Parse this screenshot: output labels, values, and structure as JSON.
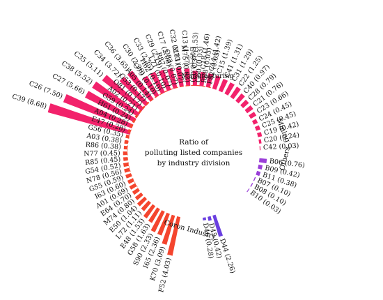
{
  "chart_data": {
    "type": "bar",
    "layout": "radial",
    "title_lines": [
      "Ratio of",
      "polluting listed companies",
      "by industry division"
    ],
    "colors": {
      "Manufacturing": "#f2226b",
      "Mining": "#9a3fd8",
      "Others": "#6a3fe0",
      "Coron Industry": "#f4452e"
    },
    "series": [
      {
        "name": "Manufacturing",
        "categories": [
          "C39",
          "C26",
          "C27",
          "C38",
          "C35",
          "C34",
          "C36",
          "C30",
          "C33",
          "C29",
          "C17",
          "C32",
          "C13",
          "C37",
          "C18",
          "C14",
          "C15",
          "C41",
          "C31",
          "C22",
          "C40",
          "C28",
          "C21",
          "C23",
          "C24",
          "C25",
          "C19",
          "C20",
          "C42"
        ],
        "values": [
          8.68,
          7.5,
          5.66,
          5.52,
          5.11,
          3.72,
          3.65,
          2.36,
          2.35,
          2.19,
          2.08,
          2.01,
          1.77,
          1.53,
          1.46,
          1.42,
          1.39,
          1.31,
          1.29,
          1.25,
          0.97,
          0.79,
          0.76,
          0.66,
          0.45,
          0.45,
          0.42,
          0.24,
          0.03
        ]
      },
      {
        "name": "Mining",
        "categories": [
          "B06",
          "B09",
          "B11",
          "B07",
          "B08",
          "B10"
        ],
        "values": [
          0.76,
          0.42,
          0.38,
          0.1,
          0.1,
          0.03
        ]
      },
      {
        "name": "Others",
        "categories": [
          "D44",
          "D45",
          "D46"
        ],
        "values": [
          2.26,
          0.42,
          0.28
        ]
      },
      {
        "name": "Coron Industry",
        "categories": [
          "F52",
          "K70",
          "I65",
          "S90",
          "G58",
          "E48",
          "L72",
          "E50",
          "M74",
          "E64",
          "A01",
          "I63",
          "G55",
          "N78",
          "G54",
          "R85",
          "N77",
          "R86",
          "A03",
          "G56",
          "E47",
          "A04",
          "H61",
          "G59",
          "A02",
          "O81",
          "G53",
          "A05",
          "O79",
          "H62",
          "L71",
          "R87",
          "Q83",
          "M73",
          "M75",
          "E49",
          "G60",
          "R88",
          "P82"
        ],
        "values": [
          4.03,
          3.09,
          2.36,
          2.33,
          1.63,
          1.53,
          1.11,
          1.04,
          0.8,
          0.7,
          0.69,
          0.6,
          0.59,
          0.56,
          0.52,
          0.45,
          0.45,
          0.38,
          0.38,
          0.35,
          0.28,
          0.28,
          0.24,
          0.24,
          0.21,
          0.17,
          0.17,
          0.14,
          0.1,
          0.1,
          0.1,
          0.07,
          0.07,
          0.07,
          0.03,
          0.03,
          0.03,
          0.03,
          0.03
        ]
      }
    ]
  }
}
